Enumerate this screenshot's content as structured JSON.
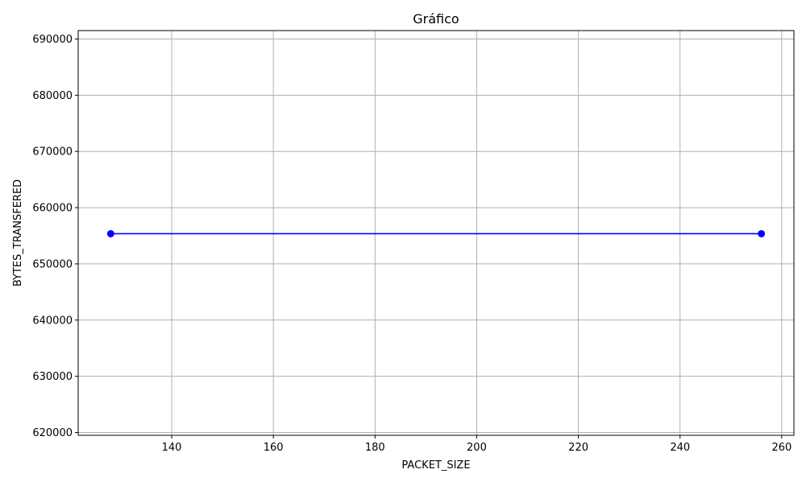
{
  "chart_data": {
    "type": "line",
    "title": "Gráfico",
    "xlabel": "PACKET_SIZE",
    "ylabel": "BYTES_TRANSFERED",
    "xlim": [
      121.6,
      262.4
    ],
    "ylim": [
      619500,
      691500
    ],
    "xticks": [
      140,
      160,
      180,
      200,
      220,
      240,
      260
    ],
    "yticks": [
      620000,
      630000,
      640000,
      650000,
      660000,
      670000,
      680000,
      690000
    ],
    "grid": true,
    "series": [
      {
        "color": "#0000ff",
        "marker": "circle",
        "x": [
          128,
          256
        ],
        "y": [
          655360,
          655360
        ]
      }
    ]
  }
}
